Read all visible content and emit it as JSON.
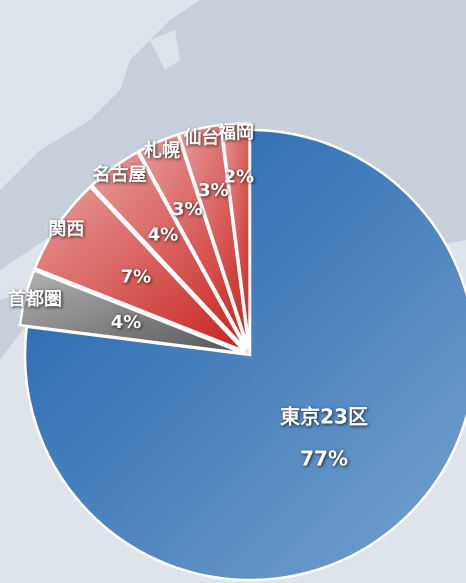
{
  "chart_data": {
    "type": "pie",
    "categories": [
      "東京23区",
      "首都圏",
      "関西",
      "名古屋",
      "札幌",
      "仙台",
      "福岡"
    ],
    "values": [
      77,
      4,
      7,
      4,
      3,
      3,
      2
    ],
    "value_labels": [
      "77%",
      "4%",
      "7%",
      "4%",
      "3%",
      "3%",
      "2%"
    ],
    "colors": [
      "#1d62ad",
      "#555555",
      "#c9231e",
      "#c9231e",
      "#c9231e",
      "#c9231e",
      "#c9231e"
    ]
  }
}
